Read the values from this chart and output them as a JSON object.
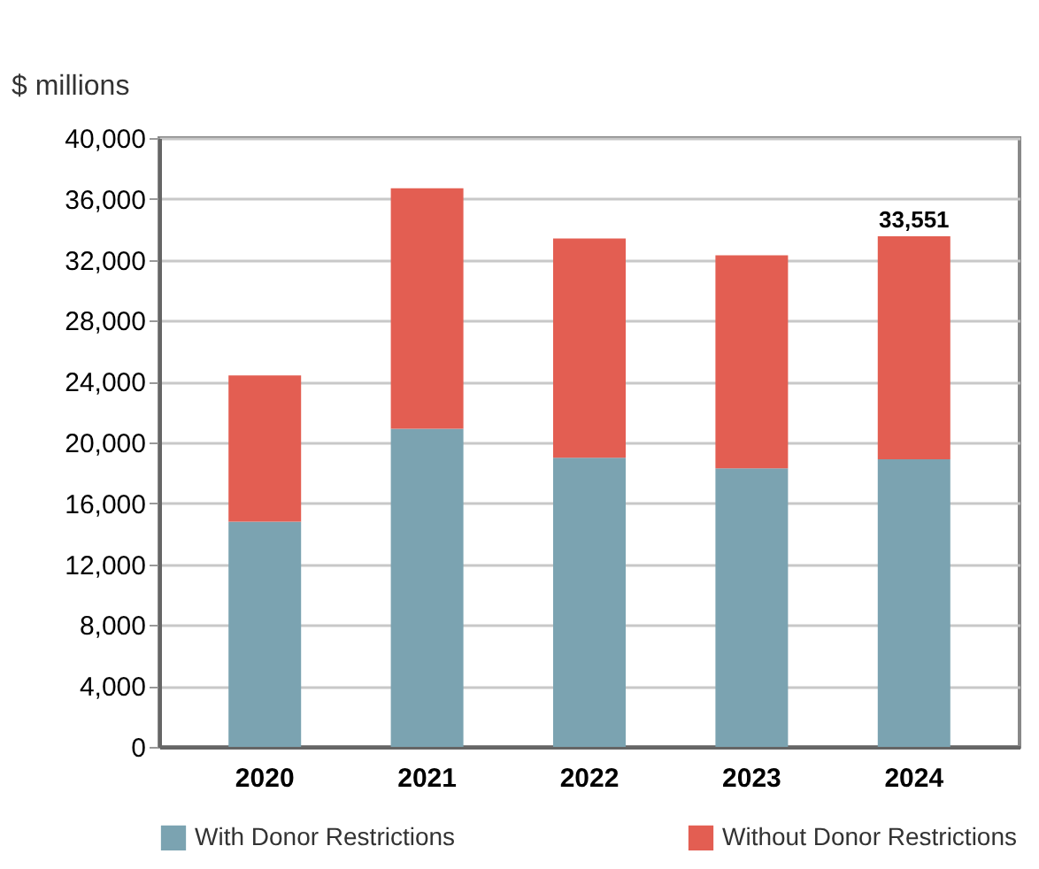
{
  "chart_data": {
    "type": "bar",
    "ylabel": "$ millions",
    "stacked": true,
    "categories": [
      "2020",
      "2021",
      "2022",
      "2023",
      "2024"
    ],
    "series": [
      {
        "name": "With Donor Restrictions",
        "color": "#7ba3b1",
        "values": [
          14800,
          20900,
          19000,
          18300,
          18900
        ]
      },
      {
        "name": "Without Donor Restrictions",
        "color": "#e35e52",
        "values": [
          9600,
          15800,
          14400,
          14000,
          14651
        ]
      }
    ],
    "totals": [
      null,
      null,
      null,
      null,
      "33,551"
    ],
    "ylim": [
      0,
      40000
    ],
    "yticks": [
      0,
      {
        "value": 4000,
        "label": "4,000"
      },
      {
        "value": 8000,
        "label": "8,000"
      },
      {
        "value": 12000,
        "label": "12,000"
      },
      {
        "value": 16000,
        "label": "16,000"
      },
      {
        "value": 20000,
        "label": "20,000"
      },
      {
        "value": 24000,
        "label": "24,000"
      },
      {
        "value": 28000,
        "label": "28,000"
      },
      {
        "value": 32000,
        "label": "32,000"
      },
      {
        "value": 36000,
        "label": "36,000"
      },
      {
        "value": 40000,
        "label": "40,000"
      }
    ],
    "grid": "y",
    "legend": "bottom"
  }
}
